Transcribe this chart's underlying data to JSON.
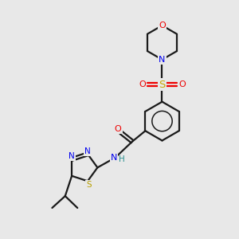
{
  "bg_color": "#e8e8e8",
  "bond_color": "#1a1a1a",
  "N_color": "#0000ee",
  "O_color": "#ee0000",
  "S_sulfonyl_color": "#c8a800",
  "S_thiadiazol_color": "#b8a000",
  "H_color": "#2a9090",
  "lw": 1.6,
  "xlim": [
    0,
    10
  ],
  "ylim": [
    0,
    10
  ]
}
